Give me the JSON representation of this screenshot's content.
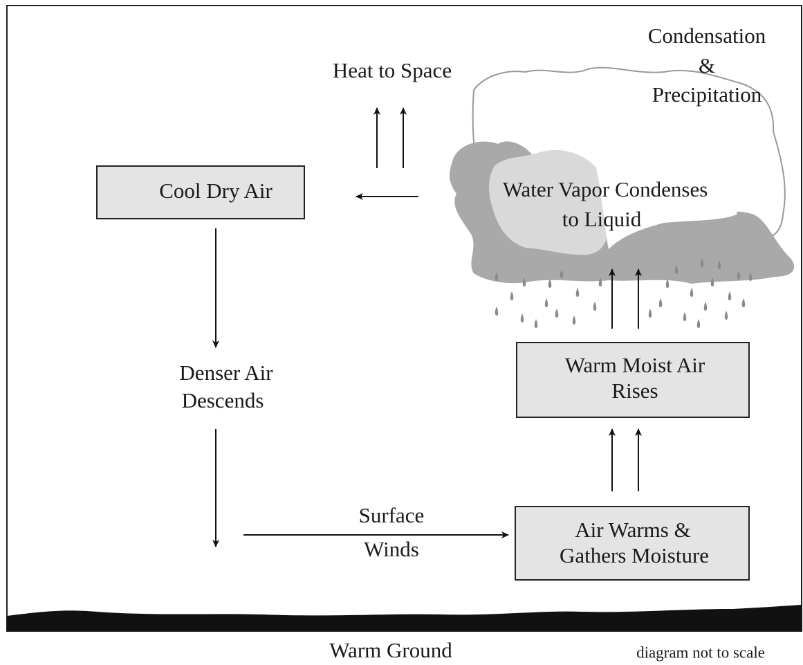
{
  "heat_to_space": "Heat to Space",
  "condensation": [
    "Condensation",
    "&",
    "Precipitation"
  ],
  "cloud_label": [
    "Water Vapor Condenses",
    "to Liquid"
  ],
  "boxes": [
    {
      "lines": [
        "Cool Dry Air"
      ]
    },
    {
      "lines": [
        "Warm Moist Air",
        "Rises"
      ]
    },
    {
      "lines": [
        "Air Warms &",
        "Gathers Moisture"
      ]
    }
  ],
  "descends": [
    "Denser Air",
    "Descends"
  ],
  "surface_winds": [
    "Surface",
    "Winds"
  ],
  "ground": "Warm Ground",
  "note": "diagram not to scale"
}
